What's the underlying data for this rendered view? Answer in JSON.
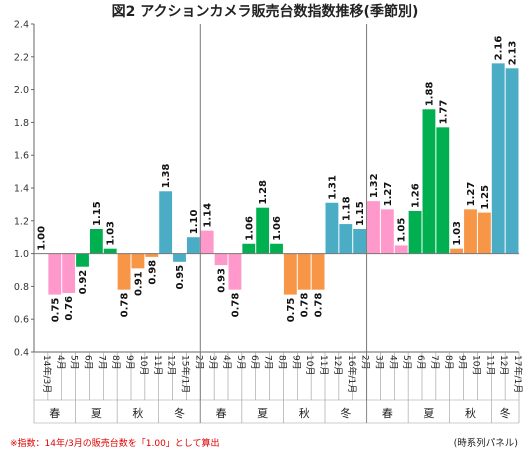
{
  "chart_data": {
    "type": "bar",
    "title": "図2 アクションカメラ販売台数指数推移(季節別)",
    "baseline": 1.0,
    "ylim": [
      0.4,
      2.4
    ],
    "yticks": [
      "0.4",
      "0.6",
      "0.8",
      "1.0",
      "1.2",
      "1.4",
      "1.6",
      "1.8",
      "2.0",
      "2.2",
      "2.4"
    ],
    "grid": false,
    "categories": [
      "14年/3月",
      "4月",
      "5月",
      "6月",
      "7月",
      "8月",
      "9月",
      "10月",
      "11月",
      "12月",
      "15年/1月",
      "2月",
      "3月",
      "4月",
      "5月",
      "6月",
      "7月",
      "8月",
      "9月",
      "10月",
      "11月",
      "12月",
      "16年/1月",
      "2月",
      "3月",
      "4月",
      "5月",
      "6月",
      "7月",
      "8月",
      "9月",
      "10月",
      "11月",
      "12月",
      "17年/1月"
    ],
    "values": [
      1.0,
      0.75,
      0.76,
      0.92,
      1.15,
      1.03,
      0.78,
      0.91,
      0.98,
      1.38,
      0.95,
      1.1,
      1.14,
      0.93,
      0.78,
      1.06,
      1.28,
      1.06,
      0.75,
      0.78,
      0.78,
      1.31,
      1.18,
      1.15,
      1.32,
      1.27,
      1.05,
      1.26,
      1.88,
      1.77,
      1.03,
      1.27,
      1.25,
      2.16,
      2.13
    ],
    "labels": [
      "1.00",
      "0.75",
      "0.76",
      "0.92",
      "1.15",
      "1.03",
      "0.78",
      "0.91",
      "0.98",
      "1.38",
      "0.95",
      "1.10",
      "1.14",
      "0.93",
      "0.78",
      "1.06",
      "1.28",
      "1.06",
      "0.75",
      "0.78",
      "0.78",
      "1.31",
      "1.18",
      "1.15",
      "1.32",
      "1.27",
      "1.05",
      "1.26",
      "1.88",
      "1.77",
      "1.03",
      "1.27",
      "1.25",
      "2.16",
      "2.13"
    ],
    "seasons": [
      {
        "name": "春",
        "start": 0,
        "end": 2
      },
      {
        "name": "夏",
        "start": 3,
        "end": 5
      },
      {
        "name": "秋",
        "start": 6,
        "end": 8
      },
      {
        "name": "冬",
        "start": 9,
        "end": 11
      },
      {
        "name": "春",
        "start": 12,
        "end": 14
      },
      {
        "name": "夏",
        "start": 15,
        "end": 17
      },
      {
        "name": "秋",
        "start": 18,
        "end": 20
      },
      {
        "name": "冬",
        "start": 21,
        "end": 23
      },
      {
        "name": "春",
        "start": 24,
        "end": 26
      },
      {
        "name": "夏",
        "start": 27,
        "end": 29
      },
      {
        "name": "秋",
        "start": 30,
        "end": 32
      },
      {
        "name": "冬",
        "start": 33,
        "end": 34
      }
    ],
    "season_colors": {
      "春": "#ff99cc",
      "夏": "#00b050",
      "秋": "#f79646",
      "冬": "#4bacc6"
    },
    "footnote": "※指数：14年/3月の販売台数を「1.00」として算出",
    "credit": "(時系列パネル)"
  }
}
